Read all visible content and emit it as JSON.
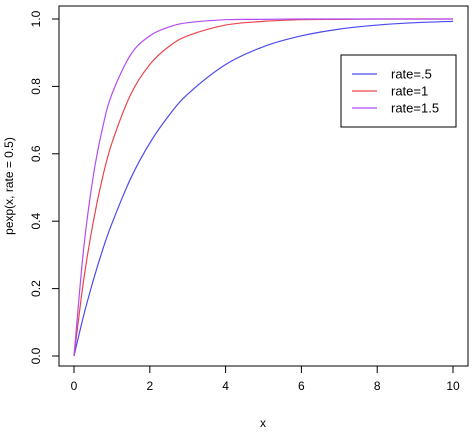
{
  "chart_data": {
    "type": "line",
    "title": "",
    "xlabel": "x",
    "ylabel": "pexp(x, rate = 0.5)",
    "xlim": [
      0,
      10
    ],
    "ylim": [
      0,
      1
    ],
    "x_ticks": [
      "0",
      "2",
      "4",
      "6",
      "8",
      "10"
    ],
    "y_ticks": [
      "0.0",
      "0.2",
      "0.4",
      "0.6",
      "0.8",
      "1.0"
    ],
    "grid": false,
    "legend_position": "top-right",
    "x": [
      0,
      0.25,
      0.5,
      0.75,
      1,
      1.5,
      2,
      2.5,
      3,
      4,
      5,
      6,
      7,
      8,
      9,
      10
    ],
    "series": [
      {
        "name": "rate=.5",
        "color": "#4a4af0",
        "values": [
          0.0,
          0.118,
          0.221,
          0.313,
          0.393,
          0.528,
          0.632,
          0.713,
          0.777,
          0.865,
          0.918,
          0.95,
          0.97,
          0.982,
          0.989,
          0.993
        ]
      },
      {
        "name": "rate=1",
        "color": "#e8464b",
        "values": [
          0.0,
          0.221,
          0.393,
          0.528,
          0.632,
          0.777,
          0.865,
          0.918,
          0.95,
          0.982,
          0.993,
          0.998,
          0.999,
          1.0,
          1.0,
          1.0
        ]
      },
      {
        "name": "rate=1.5",
        "color": "#b44cf2",
        "values": [
          0.0,
          0.313,
          0.528,
          0.675,
          0.777,
          0.895,
          0.95,
          0.976,
          0.989,
          0.998,
          0.999,
          1.0,
          1.0,
          1.0,
          1.0,
          1.0
        ]
      }
    ]
  }
}
